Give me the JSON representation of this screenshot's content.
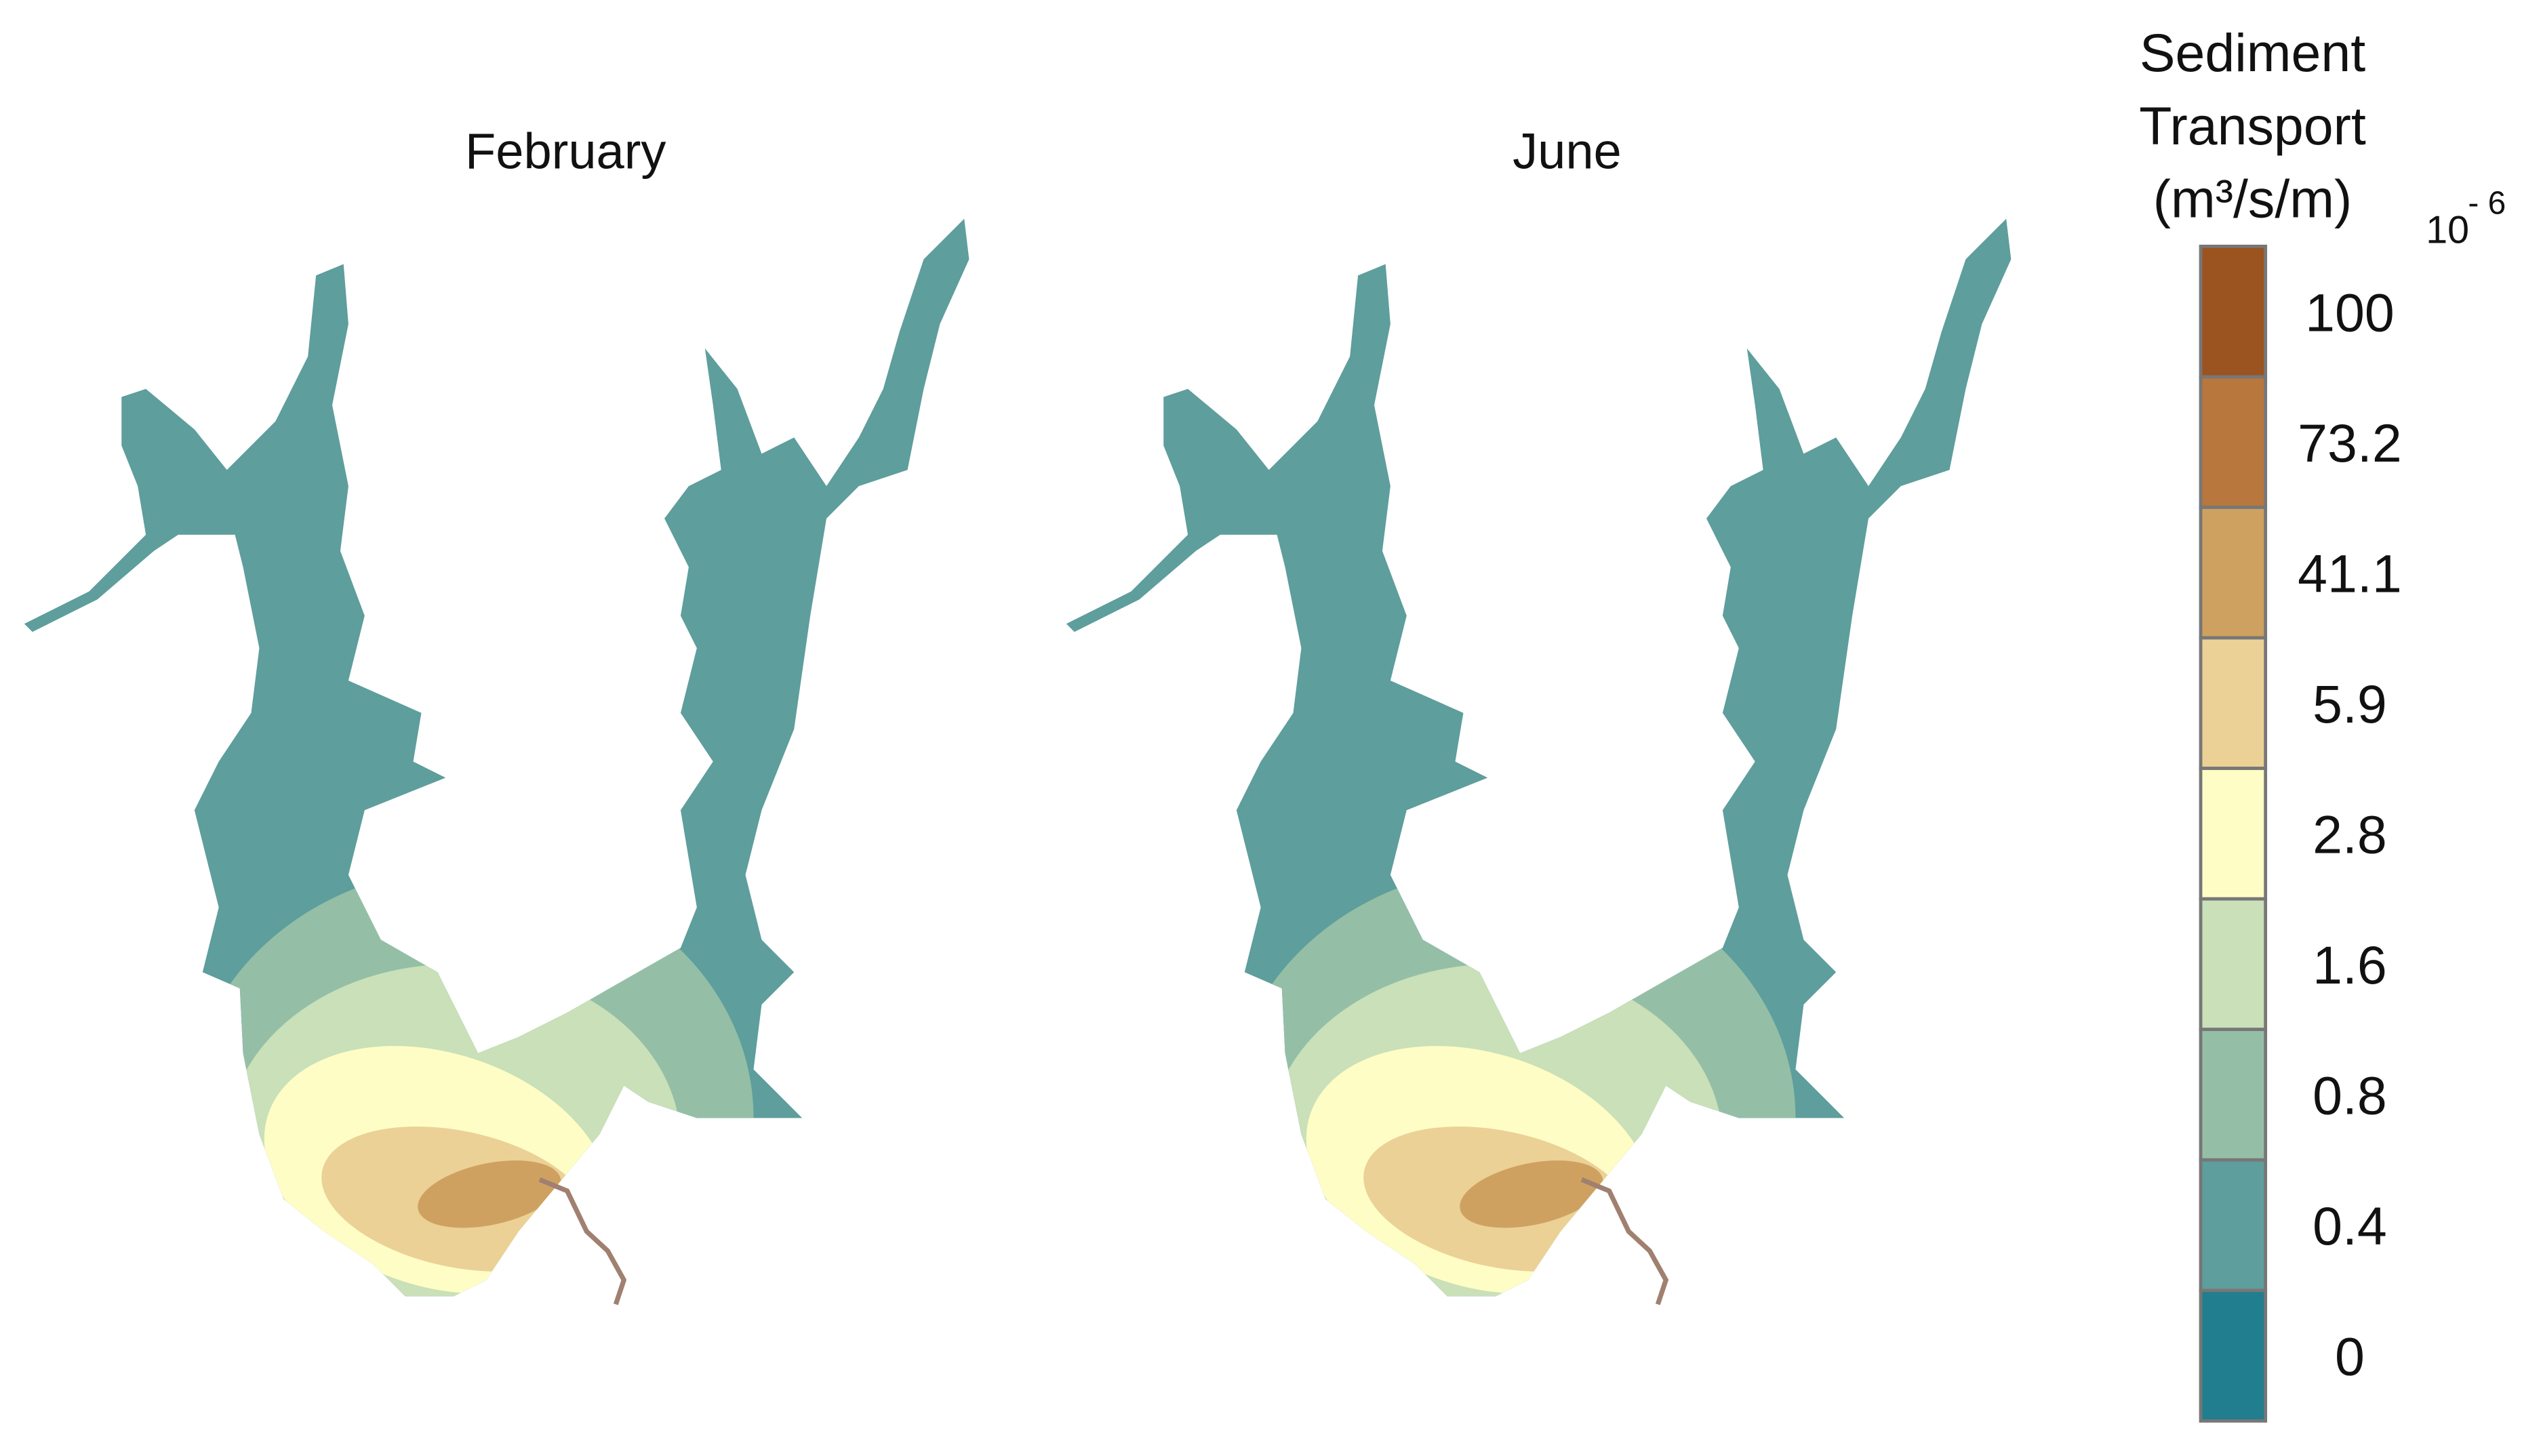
{
  "maps": [
    {
      "title": "February"
    },
    {
      "title": "June"
    }
  ],
  "legend": {
    "title": [
      "Sediment",
      "Transport",
      "(m³/s/m)"
    ],
    "multiplier": {
      "base": "10",
      "exponent": "- 6"
    },
    "levels": [
      {
        "label": "100",
        "color": "#9b531f"
      },
      {
        "label": "73.2",
        "color": "#b8773d"
      },
      {
        "label": "41.1",
        "color": "#cfa160"
      },
      {
        "label": "5.9",
        "color": "#ebd196"
      },
      {
        "label": "2.8",
        "color": "#fefdc5"
      },
      {
        "label": "1.6",
        "color": "#c9e0b8"
      },
      {
        "label": "0.8",
        "color": "#94bfa6"
      },
      {
        "label": "0.4",
        "color": "#5e9e9c"
      },
      {
        "label": "0",
        "color": "#217e8e"
      }
    ]
  }
}
